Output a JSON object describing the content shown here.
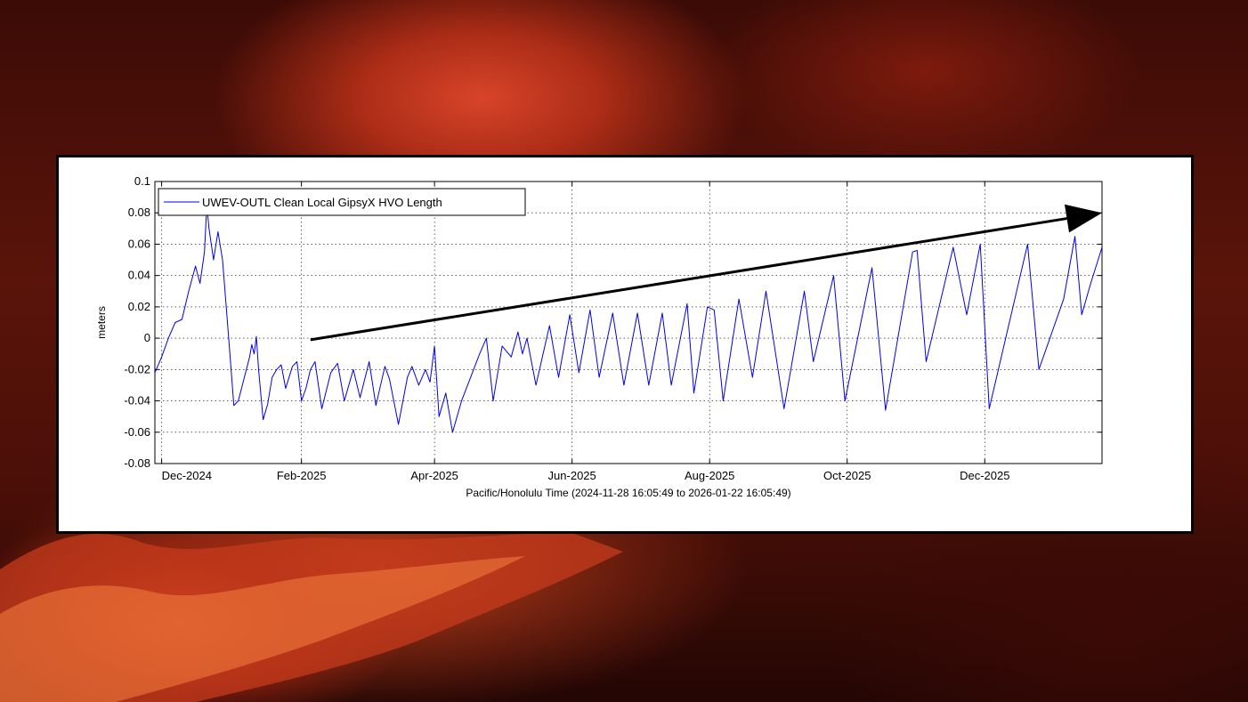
{
  "chart_data": {
    "type": "line",
    "title": "",
    "xlabel": "Pacific/Honolulu Time (2024-11-28 16:05:49 to 2026-01-22 16:05:49)",
    "ylabel": "meters",
    "xlim": [
      "2024-11-28",
      "2026-01-22"
    ],
    "ylim": [
      -0.08,
      0.1
    ],
    "grid": true,
    "legend_position": "top-left",
    "x_ticks": [
      "2024-12-01",
      "2025-02-01",
      "2025-04-01",
      "2025-06-01",
      "2025-08-01",
      "2025-10-01",
      "2025-12-01"
    ],
    "x_tick_labels": [
      "Dec-2024",
      "Feb-2025",
      "Apr-2025",
      "Jun-2025",
      "Aug-2025",
      "Oct-2025",
      "Dec-2025"
    ],
    "y_ticks": [
      -0.08,
      -0.06,
      -0.04,
      -0.02,
      0,
      0.02,
      0.04,
      0.06,
      0.08,
      0.1
    ],
    "y_tick_labels": [
      "-0.08",
      "-0.06",
      "-0.04",
      "-0.02",
      "0",
      "0.02",
      "0.04",
      "0.06",
      "0.08",
      "0.1"
    ],
    "series": [
      {
        "name": "UWEV-OUTL Clean Local GipsyX HVO Length",
        "color": "#0000ee",
        "points": [
          [
            "2024-11-28",
            -0.022
          ],
          [
            "2024-12-01",
            -0.012
          ],
          [
            "2024-12-04",
            0.0
          ],
          [
            "2024-12-07",
            0.01
          ],
          [
            "2024-12-10",
            0.012
          ],
          [
            "2024-12-13",
            0.03
          ],
          [
            "2024-12-16",
            0.046
          ],
          [
            "2024-12-18",
            0.035
          ],
          [
            "2024-12-20",
            0.055
          ],
          [
            "2024-12-21",
            0.085
          ],
          [
            "2024-12-22",
            0.07
          ],
          [
            "2024-12-24",
            0.05
          ],
          [
            "2024-12-26",
            0.068
          ],
          [
            "2024-12-28",
            0.05
          ],
          [
            "2024-12-31",
            -0.005
          ],
          [
            "2025-01-02",
            -0.043
          ],
          [
            "2025-01-04",
            -0.04
          ],
          [
            "2025-01-09",
            -0.012
          ],
          [
            "2025-01-10",
            -0.004
          ],
          [
            "2025-01-11",
            -0.01
          ],
          [
            "2025-01-12",
            0.001
          ],
          [
            "2025-01-13",
            -0.02
          ],
          [
            "2025-01-15",
            -0.052
          ],
          [
            "2025-01-17",
            -0.042
          ],
          [
            "2025-01-19",
            -0.025
          ],
          [
            "2025-01-21",
            -0.02
          ],
          [
            "2025-01-23",
            -0.017
          ],
          [
            "2025-01-25",
            -0.032
          ],
          [
            "2025-01-28",
            -0.018
          ],
          [
            "2025-01-30",
            -0.015
          ],
          [
            "2025-02-01",
            -0.04
          ],
          [
            "2025-02-03",
            -0.032
          ],
          [
            "2025-02-05",
            -0.02
          ],
          [
            "2025-02-07",
            -0.015
          ],
          [
            "2025-02-10",
            -0.045
          ],
          [
            "2025-02-14",
            -0.022
          ],
          [
            "2025-02-17",
            -0.016
          ],
          [
            "2025-02-20",
            -0.04
          ],
          [
            "2025-02-24",
            -0.02
          ],
          [
            "2025-02-27",
            -0.038
          ],
          [
            "2025-03-03",
            -0.015
          ],
          [
            "2025-03-06",
            -0.043
          ],
          [
            "2025-03-10",
            -0.018
          ],
          [
            "2025-03-12",
            -0.026
          ],
          [
            "2025-03-16",
            -0.055
          ],
          [
            "2025-03-20",
            -0.025
          ],
          [
            "2025-03-22",
            -0.018
          ],
          [
            "2025-03-25",
            -0.03
          ],
          [
            "2025-03-28",
            -0.02
          ],
          [
            "2025-03-30",
            -0.028
          ],
          [
            "2025-04-01",
            -0.005
          ],
          [
            "2025-04-03",
            -0.05
          ],
          [
            "2025-04-06",
            -0.035
          ],
          [
            "2025-04-09",
            -0.06
          ],
          [
            "2025-04-13",
            -0.04
          ],
          [
            "2025-04-17",
            -0.025
          ],
          [
            "2025-04-21",
            -0.01
          ],
          [
            "2025-04-24",
            0.0
          ],
          [
            "2025-04-27",
            -0.04
          ],
          [
            "2025-05-01",
            -0.005
          ],
          [
            "2025-05-05",
            -0.012
          ],
          [
            "2025-05-08",
            0.004
          ],
          [
            "2025-05-10",
            -0.01
          ],
          [
            "2025-05-12",
            0.0
          ],
          [
            "2025-05-16",
            -0.03
          ],
          [
            "2025-05-22",
            0.008
          ],
          [
            "2025-05-26",
            -0.025
          ],
          [
            "2025-05-31",
            0.015
          ],
          [
            "2025-06-04",
            -0.022
          ],
          [
            "2025-06-09",
            0.018
          ],
          [
            "2025-06-13",
            -0.025
          ],
          [
            "2025-06-19",
            0.016
          ],
          [
            "2025-06-24",
            -0.03
          ],
          [
            "2025-06-30",
            0.016
          ],
          [
            "2025-07-05",
            -0.03
          ],
          [
            "2025-07-11",
            0.016
          ],
          [
            "2025-07-15",
            -0.03
          ],
          [
            "2025-07-22",
            0.022
          ],
          [
            "2025-07-25",
            -0.035
          ],
          [
            "2025-07-31",
            0.02
          ],
          [
            "2025-08-03",
            0.018
          ],
          [
            "2025-08-07",
            -0.04
          ],
          [
            "2025-08-14",
            0.025
          ],
          [
            "2025-08-20",
            -0.025
          ],
          [
            "2025-08-26",
            0.03
          ],
          [
            "2025-09-03",
            -0.045
          ],
          [
            "2025-09-12",
            0.03
          ],
          [
            "2025-09-16",
            -0.015
          ],
          [
            "2025-09-25",
            0.04
          ],
          [
            "2025-09-30",
            -0.04
          ],
          [
            "2025-10-12",
            0.045
          ],
          [
            "2025-10-18",
            -0.046
          ],
          [
            "2025-10-30",
            0.055
          ],
          [
            "2025-11-01",
            0.056
          ],
          [
            "2025-11-05",
            -0.015
          ],
          [
            "2025-11-17",
            0.058
          ],
          [
            "2025-11-23",
            0.015
          ],
          [
            "2025-11-29",
            0.06
          ],
          [
            "2025-12-03",
            -0.045
          ],
          [
            "2025-12-20",
            0.06
          ],
          [
            "2025-12-25",
            -0.02
          ],
          [
            "2026-01-05",
            0.025
          ],
          [
            "2026-01-10",
            0.065
          ],
          [
            "2026-01-13",
            0.015
          ],
          [
            "2026-01-17",
            0.035
          ],
          [
            "2026-01-22",
            0.058
          ]
        ]
      }
    ],
    "annotations": [
      {
        "type": "arrow",
        "color": "#000000",
        "from": [
          "2025-02-05",
          -0.001
        ],
        "to": [
          "2026-01-22",
          0.08
        ]
      }
    ]
  }
}
